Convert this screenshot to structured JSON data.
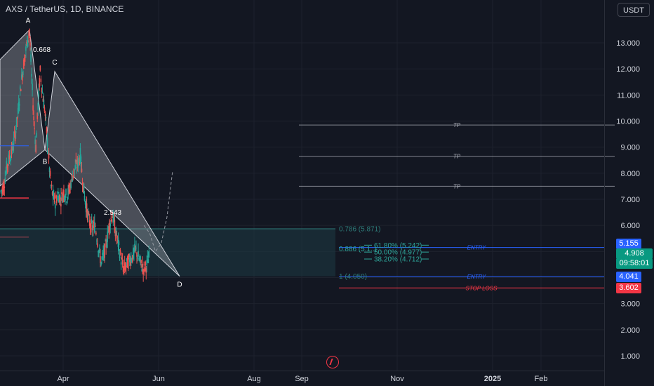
{
  "header": {
    "symbol": "AXS / TetherUS, 1D, BINANCE",
    "currency_button": "USDT"
  },
  "chart_data": {
    "type": "candlestick",
    "title": "AXS / TetherUS, 1D, BINANCE",
    "y_axis": {
      "ticks": [
        "13.000",
        "12.000",
        "11.000",
        "10.000",
        "9.000",
        "8.000",
        "7.000",
        "6.000",
        "5.000",
        "4.000",
        "3.000",
        "2.000",
        "1.000"
      ],
      "tick_values": [
        13,
        12,
        11,
        10,
        9,
        8,
        7,
        6,
        5,
        4,
        3,
        2,
        1
      ],
      "range": [
        0.6,
        14.3
      ]
    },
    "x_axis": {
      "ticks": [
        "Apr",
        "Jun",
        "Aug",
        "Sep",
        "Nov",
        "2025",
        "Feb"
      ],
      "bold": [
        "2025"
      ]
    },
    "price_close_approx": [
      [
        -40,
        7.3
      ],
      [
        -36,
        7.5
      ],
      [
        -32,
        8.2
      ],
      [
        -28,
        8.6
      ],
      [
        -24,
        8.9
      ],
      [
        -20,
        9.5
      ],
      [
        -16,
        10.3
      ],
      [
        -12,
        11.4
      ],
      [
        -8,
        12.2
      ],
      [
        -4,
        12.9
      ],
      [
        0,
        13.5
      ],
      [
        3,
        11.7
      ],
      [
        6,
        10.1
      ],
      [
        9,
        9.0
      ],
      [
        12,
        10.6
      ],
      [
        15,
        11.9
      ],
      [
        18,
        11.1
      ],
      [
        21,
        10.5
      ],
      [
        24,
        9.6
      ],
      [
        27,
        8.5
      ],
      [
        30,
        7.5
      ],
      [
        33,
        7.1
      ],
      [
        36,
        6.9
      ],
      [
        40,
        7.2
      ],
      [
        44,
        7.0
      ],
      [
        48,
        7.3
      ],
      [
        52,
        7.1
      ],
      [
        56,
        7.4
      ],
      [
        60,
        7.9
      ],
      [
        64,
        8.2
      ],
      [
        68,
        8.4
      ],
      [
        71,
        8.7
      ],
      [
        74,
        7.8
      ],
      [
        77,
        7.1
      ],
      [
        80,
        6.6
      ],
      [
        84,
        6.1
      ],
      [
        88,
        5.9
      ],
      [
        92,
        6.0
      ],
      [
        96,
        5.2
      ],
      [
        100,
        4.6
      ],
      [
        104,
        4.9
      ],
      [
        108,
        5.4
      ],
      [
        112,
        6.1
      ],
      [
        116,
        6.4
      ],
      [
        120,
        5.8
      ],
      [
        124,
        5.3
      ],
      [
        128,
        4.7
      ],
      [
        132,
        4.3
      ],
      [
        136,
        4.5
      ],
      [
        140,
        4.7
      ],
      [
        144,
        4.8
      ],
      [
        148,
        5.1
      ],
      [
        152,
        4.8
      ],
      [
        156,
        4.5
      ],
      [
        160,
        4.3
      ],
      [
        164,
        4.5
      ],
      [
        168,
        4.9
      ]
    ],
    "projection_path": [
      [
        160,
        6.0
      ],
      [
        168,
        5.7
      ],
      [
        176,
        5.0
      ],
      [
        184,
        5.3
      ],
      [
        192,
        6.3
      ],
      [
        200,
        8.1
      ]
    ],
    "pattern": {
      "points": [
        {
          "label": "A",
          "value": 13.5
        },
        {
          "label": "B",
          "value": 8.9
        },
        {
          "label": "C",
          "value": 11.9
        },
        {
          "label": "D",
          "value": 4.05
        }
      ],
      "ratios": [
        "0.668",
        "2.543"
      ]
    },
    "fib_levels": [
      {
        "label": "0.786 (5.871)",
        "value": 5.871
      },
      {
        "label": "0.886 (5.1..)",
        "value": 5.1
      },
      {
        "label": "61.80% (5.242)",
        "value": 5.242
      },
      {
        "label": "50.00% (4.977)",
        "value": 4.977
      },
      {
        "label": "38.20% (4.712)",
        "value": 4.712
      },
      {
        "label": "1 (4.050)",
        "value": 4.05
      }
    ],
    "lines": [
      {
        "label": "TP",
        "value": 9.85
      },
      {
        "label": "TP",
        "value": 8.65
      },
      {
        "label": "TP",
        "value": 7.5
      },
      {
        "label": "ENTRY",
        "value": 5.155
      },
      {
        "label": "ENTRY",
        "value": 4.041
      },
      {
        "label": "STOP LOSS",
        "value": 3.602
      }
    ],
    "price_tags": [
      {
        "text": "5.155",
        "value": 5.155,
        "color": "#2962ff"
      },
      {
        "text": "4.908",
        "value": 4.908,
        "color": "#089981"
      },
      {
        "text": "09:58:01",
        "value": 4.908,
        "color": "#089981"
      },
      {
        "text": "4.041",
        "value": 4.041,
        "color": "#2962ff"
      },
      {
        "text": "3.602",
        "value": 3.602,
        "color": "#f23645"
      }
    ],
    "colors": {
      "up": "#26a69a",
      "down": "#ef5350",
      "background": "#131722",
      "tp_line": "#b2b5be",
      "entry_line": "#2962ff",
      "stop_line": "#f23645",
      "zone_fill": "#1e3a44"
    }
  }
}
